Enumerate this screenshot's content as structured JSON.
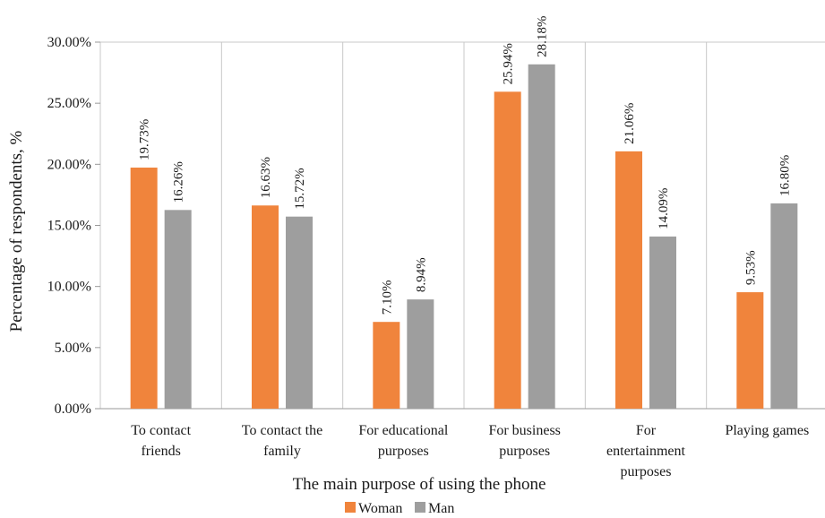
{
  "chart_data": {
    "type": "bar",
    "categories": [
      [
        "To contact",
        "friends"
      ],
      [
        "To contact the",
        "family"
      ],
      [
        "For educational",
        "purposes"
      ],
      [
        "For business",
        "purposes"
      ],
      [
        "For",
        "entertainment",
        "purposes"
      ],
      [
        "Playing games"
      ]
    ],
    "series": [
      {
        "name": "Woman",
        "color": "#F0843C",
        "values": [
          19.73,
          16.63,
          7.1,
          25.94,
          21.06,
          9.53
        ],
        "labels": [
          "19.73%",
          "16.63%",
          "7.10%",
          "25.94%",
          "21.06%",
          "9.53%"
        ]
      },
      {
        "name": "Man",
        "color": "#9E9E9E",
        "values": [
          16.26,
          15.72,
          8.94,
          28.18,
          14.09,
          16.8
        ],
        "labels": [
          "16.26%",
          "15.72%",
          "8.94%",
          "28.18%",
          "14.09%",
          "16.80%"
        ]
      }
    ],
    "yticks": [
      "0.00%",
      "5.00%",
      "10.00%",
      "15.00%",
      "20.00%",
      "25.00%",
      "30.00%"
    ],
    "ylim": [
      0,
      30
    ],
    "xlabel": "The main purpose of using the phone",
    "ylabel": "Percentage of respondents, %",
    "legend": "bottom",
    "grid": "vertical category separators",
    "colors": {
      "grid": "#C8C8C8",
      "axis": "#9A9A9A"
    }
  }
}
